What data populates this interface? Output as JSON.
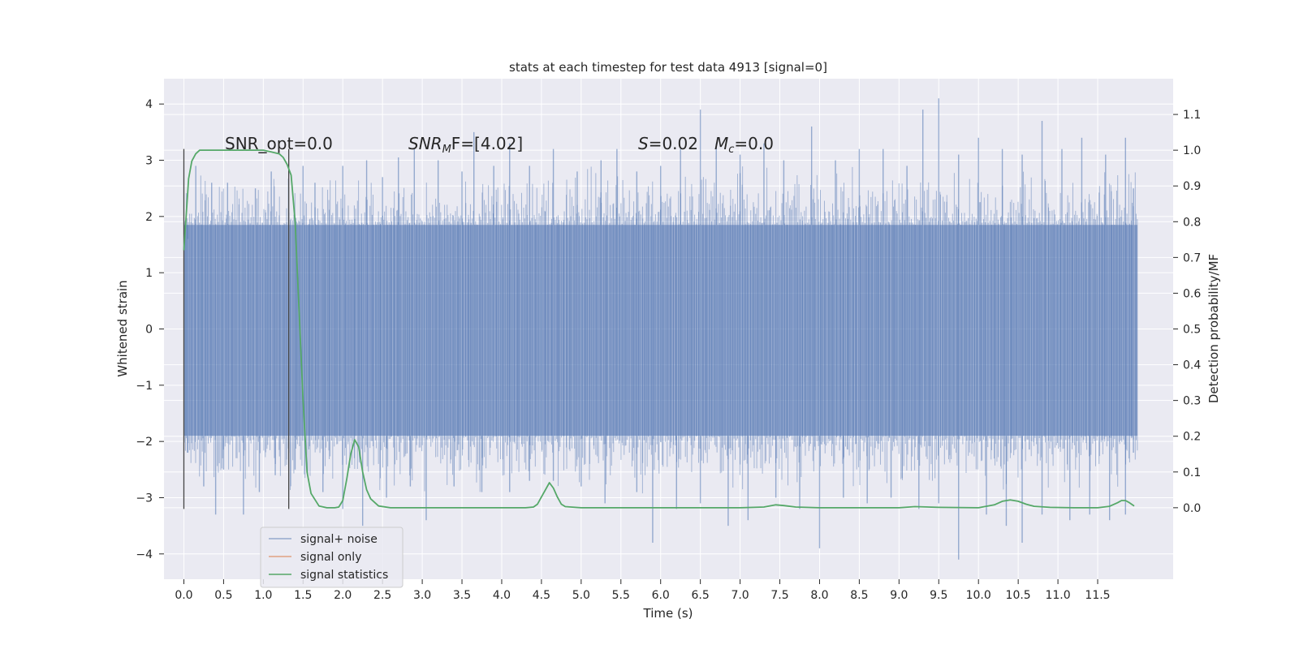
{
  "chart_data": {
    "type": "line",
    "title": "stats at each timestep for test data 4913 [signal=0]",
    "xlabel": "Time (s)",
    "ylabel_left": "Whitened strain",
    "ylabel_right": "Detection probability/MF",
    "xlim": [
      -0.25,
      12.45
    ],
    "ylim_left": [
      -4.45,
      4.45
    ],
    "ylim_right": [
      -0.2,
      1.2
    ],
    "x_ticks": [
      "0.0",
      "0.5",
      "1.0",
      "1.5",
      "2.0",
      "2.5",
      "3.0",
      "3.5",
      "4.0",
      "4.5",
      "5.0",
      "5.5",
      "6.0",
      "6.5",
      "7.0",
      "7.5",
      "8.0",
      "8.5",
      "9.0",
      "9.5",
      "10.0",
      "10.5",
      "11.0",
      "11.5"
    ],
    "y_left_ticks": [
      "4",
      "3",
      "2",
      "1",
      "0",
      "−1",
      "−2",
      "−3",
      "−4"
    ],
    "y_right_ticks": [
      "1.1",
      "1.0",
      "0.9",
      "0.8",
      "0.7",
      "0.6",
      "0.5",
      "0.4",
      "0.3",
      "0.2",
      "0.1",
      "0.0"
    ],
    "grid": true,
    "legend_position": "bottom-left",
    "colors": {
      "background": "#eaeaf2",
      "grid": "#ffffff",
      "noise": "#4c72b0",
      "signal_only": "#dd8452",
      "statistics": "#55a868",
      "window_marker": "#444444"
    },
    "annotations": {
      "snr_opt": "SNR_opt=0.0",
      "snr_mf_prefix": "SNR",
      "snr_mf_sub": "M",
      "snr_mf_suffix": "F=[4.02]",
      "s_label": "S",
      "s_value": "=0.02",
      "mc_label": "M",
      "mc_sub": "c",
      "mc_value": "=0.0"
    },
    "window_markers_x": [
      0.0,
      1.32
    ],
    "series": [
      {
        "name": "signal+ noise",
        "style": "dense noise band",
        "x_range": [
          0.0,
          12.0
        ],
        "band_low": -1.9,
        "band_high": 1.85,
        "spikes_up": [
          [
            0.05,
            1.6
          ],
          [
            0.15,
            2.9
          ],
          [
            0.35,
            2.6
          ],
          [
            0.55,
            2.6
          ],
          [
            0.9,
            2.5
          ],
          [
            1.1,
            2.8
          ],
          [
            1.5,
            2.9
          ],
          [
            1.65,
            2.6
          ],
          [
            2.0,
            2.9
          ],
          [
            2.3,
            3.0
          ],
          [
            2.5,
            2.7
          ],
          [
            2.7,
            3.05
          ],
          [
            2.9,
            3.2
          ],
          [
            3.2,
            3.0
          ],
          [
            3.5,
            2.8
          ],
          [
            3.65,
            3.5
          ],
          [
            3.9,
            2.9
          ],
          [
            4.1,
            3.3
          ],
          [
            4.35,
            2.9
          ],
          [
            4.65,
            3.2
          ],
          [
            4.95,
            2.8
          ],
          [
            5.25,
            3.0
          ],
          [
            5.45,
            3.2
          ],
          [
            5.7,
            2.8
          ],
          [
            6.0,
            2.9
          ],
          [
            6.25,
            3.2
          ],
          [
            6.5,
            3.9
          ],
          [
            6.7,
            3.3
          ],
          [
            7.0,
            3.1
          ],
          [
            7.3,
            3.3
          ],
          [
            7.55,
            3.0
          ],
          [
            7.9,
            3.6
          ],
          [
            8.2,
            3.0
          ],
          [
            8.5,
            3.2
          ],
          [
            8.8,
            3.2
          ],
          [
            9.1,
            2.9
          ],
          [
            9.3,
            3.9
          ],
          [
            9.5,
            4.1
          ],
          [
            9.75,
            3.1
          ],
          [
            10.0,
            3.4
          ],
          [
            10.3,
            3.2
          ],
          [
            10.55,
            3.1
          ],
          [
            10.8,
            3.7
          ],
          [
            11.05,
            3.2
          ],
          [
            11.3,
            3.4
          ],
          [
            11.6,
            3.1
          ],
          [
            11.85,
            3.4
          ],
          [
            11.95,
            2.5
          ]
        ],
        "spikes_down": [
          [
            0.05,
            -2.2
          ],
          [
            0.25,
            -2.8
          ],
          [
            0.4,
            -3.3
          ],
          [
            0.5,
            -2.5
          ],
          [
            0.75,
            -3.3
          ],
          [
            0.95,
            -2.9
          ],
          [
            1.15,
            -2.6
          ],
          [
            1.4,
            -2.5
          ],
          [
            1.75,
            -2.9
          ],
          [
            2.0,
            -3.2
          ],
          [
            2.25,
            -3.5
          ],
          [
            2.55,
            -3.0
          ],
          [
            2.85,
            -2.8
          ],
          [
            3.05,
            -3.4
          ],
          [
            3.4,
            -2.8
          ],
          [
            3.75,
            -2.9
          ],
          [
            4.1,
            -2.9
          ],
          [
            4.35,
            -2.7
          ],
          [
            4.65,
            -2.7
          ],
          [
            5.0,
            -2.8
          ],
          [
            5.3,
            -3.1
          ],
          [
            5.7,
            -2.9
          ],
          [
            5.9,
            -3.8
          ],
          [
            6.2,
            -3.2
          ],
          [
            6.5,
            -3.1
          ],
          [
            6.85,
            -3.5
          ],
          [
            7.1,
            -3.4
          ],
          [
            7.45,
            -3.0
          ],
          [
            7.75,
            -3.2
          ],
          [
            8.0,
            -3.9
          ],
          [
            8.3,
            -3.0
          ],
          [
            8.6,
            -3.1
          ],
          [
            8.9,
            -3.0
          ],
          [
            9.25,
            -3.2
          ],
          [
            9.5,
            -3.1
          ],
          [
            9.75,
            -4.1
          ],
          [
            10.1,
            -3.3
          ],
          [
            10.35,
            -3.5
          ],
          [
            10.55,
            -3.8
          ],
          [
            10.8,
            -3.3
          ],
          [
            11.15,
            -3.4
          ],
          [
            11.4,
            -3.3
          ],
          [
            11.65,
            -3.4
          ],
          [
            11.85,
            -3.3
          ],
          [
            11.95,
            -2.2
          ]
        ]
      },
      {
        "name": "signal only",
        "x": [],
        "y": []
      },
      {
        "name": "signal statistics",
        "axis": "right",
        "x": [
          0.0,
          0.03,
          0.06,
          0.1,
          0.15,
          0.2,
          0.3,
          0.5,
          0.8,
          1.0,
          1.1,
          1.2,
          1.25,
          1.3,
          1.35,
          1.4,
          1.45,
          1.5,
          1.55,
          1.6,
          1.7,
          1.8,
          1.9,
          1.95,
          2.0,
          2.05,
          2.1,
          2.15,
          2.2,
          2.25,
          2.3,
          2.35,
          2.45,
          2.6,
          3.0,
          3.5,
          4.0,
          4.3,
          4.4,
          4.45,
          4.5,
          4.55,
          4.6,
          4.65,
          4.7,
          4.75,
          4.8,
          5.0,
          5.5,
          6.0,
          6.5,
          7.0,
          7.3,
          7.45,
          7.55,
          7.7,
          8.0,
          8.5,
          9.0,
          9.2,
          9.5,
          10.0,
          10.2,
          10.3,
          10.4,
          10.5,
          10.6,
          10.7,
          10.9,
          11.2,
          11.5,
          11.65,
          11.75,
          11.8,
          11.85,
          11.9,
          11.96
        ],
        "y": [
          0.72,
          0.82,
          0.92,
          0.97,
          0.99,
          1.0,
          1.0,
          1.0,
          1.0,
          1.0,
          0.995,
          0.99,
          0.98,
          0.96,
          0.93,
          0.8,
          0.55,
          0.3,
          0.1,
          0.04,
          0.005,
          0.0,
          0.0,
          0.002,
          0.02,
          0.08,
          0.15,
          0.19,
          0.17,
          0.1,
          0.05,
          0.025,
          0.005,
          0.0,
          0.0,
          0.0,
          0.0,
          0.0,
          0.002,
          0.01,
          0.03,
          0.05,
          0.07,
          0.055,
          0.03,
          0.01,
          0.003,
          0.0,
          0.0,
          0.0,
          0.0,
          0.0,
          0.002,
          0.008,
          0.006,
          0.002,
          0.0,
          0.0,
          0.0,
          0.003,
          0.001,
          0.0,
          0.008,
          0.018,
          0.022,
          0.018,
          0.01,
          0.004,
          0.001,
          0.0,
          0.0,
          0.004,
          0.014,
          0.02,
          0.02,
          0.014,
          0.005
        ]
      }
    ]
  }
}
